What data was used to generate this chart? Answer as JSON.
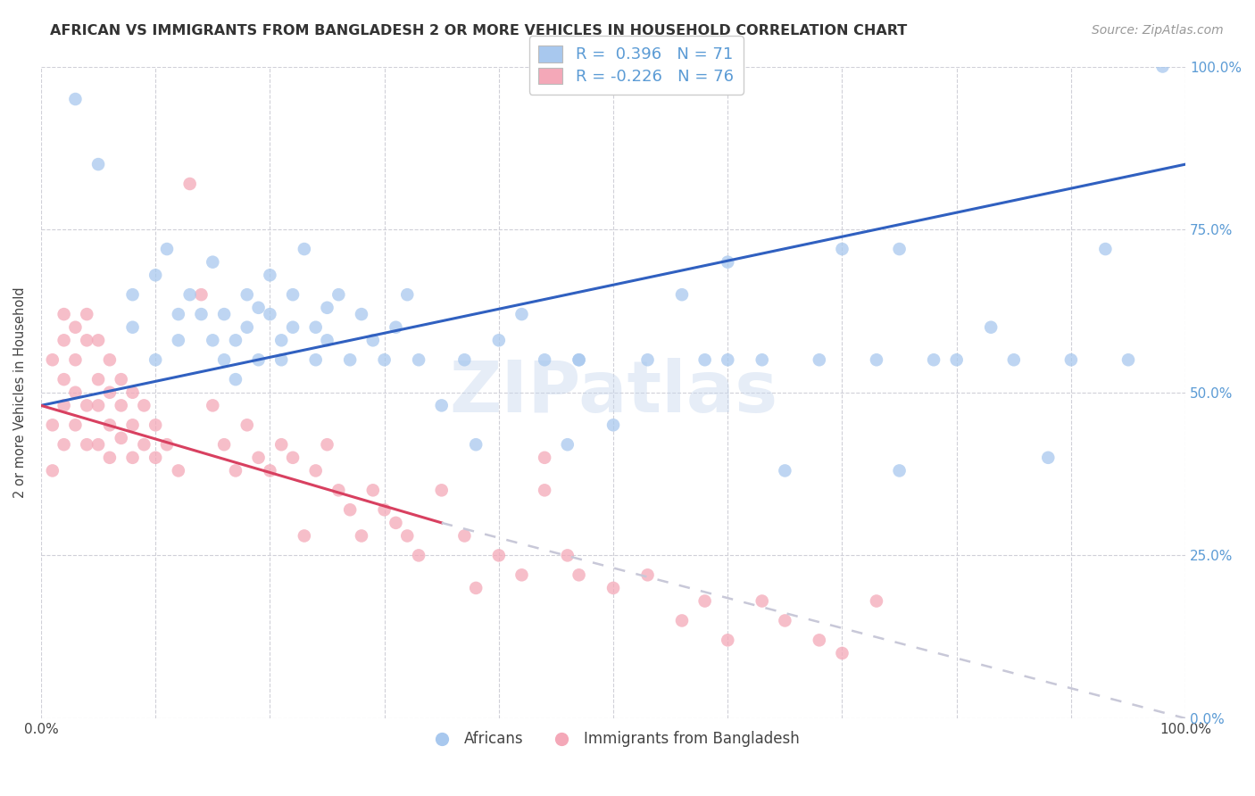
{
  "title": "AFRICAN VS IMMIGRANTS FROM BANGLADESH 2 OR MORE VEHICLES IN HOUSEHOLD CORRELATION CHART",
  "source": "Source: ZipAtlas.com",
  "ylabel": "2 or more Vehicles in Household",
  "yticks": [
    "0.0%",
    "25.0%",
    "50.0%",
    "75.0%",
    "100.0%"
  ],
  "ytick_vals": [
    0,
    25,
    50,
    75,
    100
  ],
  "xlim": [
    0,
    100
  ],
  "ylim": [
    0,
    100
  ],
  "watermark": "ZIPatlas",
  "legend_africans_r": "0.396",
  "legend_africans_n": "71",
  "legend_bangladesh_r": "-0.226",
  "legend_bangladesh_n": "76",
  "blue_color": "#A8C8EE",
  "pink_color": "#F4A8B8",
  "trendline_blue": "#3060C0",
  "trendline_pink": "#D84060",
  "trendline_dashed": "#C8C8D8",
  "grid_color": "#D0D0D8",
  "blue_trendline_x0": 0,
  "blue_trendline_y0": 48,
  "blue_trendline_x1": 100,
  "blue_trendline_y1": 85,
  "pink_solid_x0": 0,
  "pink_solid_y0": 48,
  "pink_solid_x1": 35,
  "pink_solid_y1": 30,
  "pink_dashed_x0": 35,
  "pink_dashed_y0": 30,
  "pink_dashed_x1": 100,
  "pink_dashed_y1": 0,
  "africans_x": [
    3,
    5,
    8,
    8,
    10,
    10,
    11,
    12,
    12,
    13,
    14,
    15,
    15,
    16,
    16,
    17,
    17,
    18,
    18,
    19,
    19,
    20,
    20,
    21,
    21,
    22,
    22,
    23,
    24,
    24,
    25,
    25,
    26,
    27,
    28,
    29,
    30,
    31,
    32,
    33,
    35,
    37,
    38,
    40,
    42,
    44,
    46,
    47,
    50,
    53,
    56,
    58,
    60,
    63,
    65,
    68,
    70,
    73,
    75,
    78,
    80,
    83,
    85,
    88,
    90,
    93,
    95,
    75,
    60,
    47,
    98
  ],
  "africans_y": [
    95,
    85,
    65,
    60,
    68,
    55,
    72,
    62,
    58,
    65,
    62,
    70,
    58,
    55,
    62,
    52,
    58,
    65,
    60,
    55,
    63,
    62,
    68,
    58,
    55,
    60,
    65,
    72,
    55,
    60,
    63,
    58,
    65,
    55,
    62,
    58,
    55,
    60,
    65,
    55,
    48,
    55,
    42,
    58,
    62,
    55,
    42,
    55,
    45,
    55,
    65,
    55,
    55,
    55,
    38,
    55,
    72,
    55,
    38,
    55,
    55,
    60,
    55,
    40,
    55,
    72,
    55,
    72,
    70,
    55,
    100
  ],
  "bangladesh_x": [
    1,
    1,
    1,
    2,
    2,
    2,
    2,
    2,
    3,
    3,
    3,
    3,
    4,
    4,
    4,
    4,
    5,
    5,
    5,
    5,
    6,
    6,
    6,
    6,
    7,
    7,
    7,
    8,
    8,
    8,
    9,
    9,
    10,
    10,
    11,
    12,
    13,
    14,
    15,
    16,
    17,
    18,
    19,
    20,
    21,
    22,
    23,
    24,
    25,
    26,
    27,
    28,
    29,
    30,
    31,
    32,
    33,
    35,
    37,
    38,
    40,
    42,
    44,
    46,
    47,
    50,
    53,
    56,
    58,
    60,
    63,
    65,
    68,
    70,
    73,
    44
  ],
  "bangladesh_y": [
    55,
    45,
    38,
    62,
    58,
    52,
    48,
    42,
    60,
    55,
    50,
    45,
    62,
    58,
    48,
    42,
    58,
    52,
    48,
    42,
    55,
    50,
    45,
    40,
    52,
    48,
    43,
    50,
    45,
    40,
    48,
    42,
    45,
    40,
    42,
    38,
    82,
    65,
    48,
    42,
    38,
    45,
    40,
    38,
    42,
    40,
    28,
    38,
    42,
    35,
    32,
    28,
    35,
    32,
    30,
    28,
    25,
    35,
    28,
    20,
    25,
    22,
    35,
    25,
    22,
    20,
    22,
    15,
    18,
    12,
    18,
    15,
    12,
    10,
    18,
    40
  ],
  "watermark_color": "#C8D8EE",
  "watermark_alpha": 0.45
}
